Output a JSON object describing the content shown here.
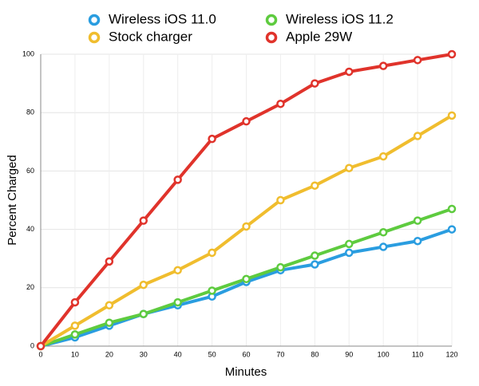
{
  "chart_data": {
    "type": "line",
    "x_label": "Minutes",
    "y_label": "Percent Charged",
    "x": [
      0,
      10,
      20,
      30,
      40,
      50,
      60,
      70,
      80,
      90,
      100,
      110,
      120
    ],
    "series": [
      {
        "name": "Wireless iOS 11.0",
        "color": "#2a9de0",
        "values": [
          0,
          3,
          7,
          11,
          14,
          17,
          22,
          26,
          28,
          32,
          34,
          36,
          40
        ]
      },
      {
        "name": "Wireless iOS 11.2",
        "color": "#5ecb3f",
        "values": [
          0,
          4,
          8,
          11,
          15,
          19,
          23,
          27,
          31,
          35,
          39,
          43,
          47
        ]
      },
      {
        "name": "Stock charger",
        "color": "#f0bd2e",
        "values": [
          0,
          7,
          14,
          21,
          26,
          32,
          41,
          50,
          55,
          61,
          65,
          72,
          79
        ]
      },
      {
        "name": "Apple 29W",
        "color": "#e0332b",
        "values": [
          0,
          15,
          29,
          43,
          57,
          71,
          77,
          83,
          90,
          94,
          96,
          98,
          100
        ]
      }
    ],
    "xlim": [
      0,
      120
    ],
    "xticks": [
      0,
      10,
      20,
      30,
      40,
      50,
      60,
      70,
      80,
      90,
      100,
      110,
      120
    ],
    "ylim": [
      0,
      100
    ],
    "yticks": [
      0,
      20,
      40,
      60,
      80,
      100
    ],
    "grid": true
  }
}
